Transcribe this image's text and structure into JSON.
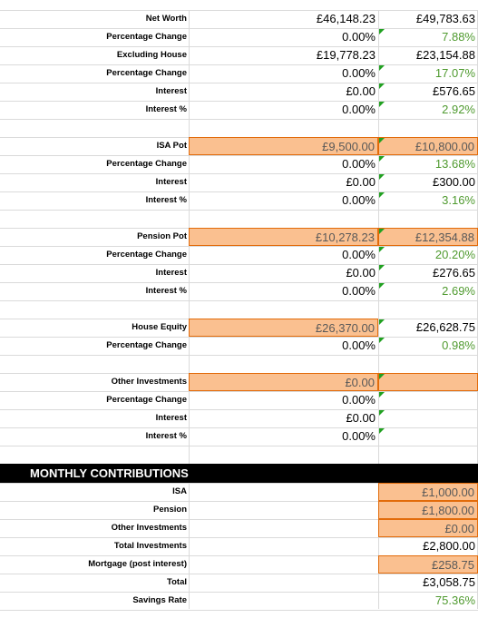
{
  "groups": [
    [
      [
        "Net Worth",
        "£46,148.23",
        "£49,783.63"
      ],
      [
        "Percentage Change",
        "0.00%",
        "7.88%"
      ],
      [
        "Excluding House",
        "£19,778.23",
        "£23,154.88"
      ],
      [
        "Percentage Change",
        "0.00%",
        "17.07%"
      ],
      [
        "Interest",
        "£0.00",
        "£576.65"
      ],
      [
        "Interest %",
        "0.00%",
        "2.92%"
      ]
    ],
    [
      [
        "ISA Pot",
        "£9,500.00",
        "£10,800.00"
      ],
      [
        "Percentage Change",
        "0.00%",
        "13.68%"
      ],
      [
        "Interest",
        "£0.00",
        "£300.00"
      ],
      [
        "Interest %",
        "0.00%",
        "3.16%"
      ]
    ],
    [
      [
        "Pension Pot",
        "£10,278.23",
        "£12,354.88"
      ],
      [
        "Percentage Change",
        "0.00%",
        "20.20%"
      ],
      [
        "Interest",
        "£0.00",
        "£276.65"
      ],
      [
        "Interest %",
        "0.00%",
        "2.69%"
      ]
    ],
    [
      [
        "House Equity",
        "£26,370.00",
        "£26,628.75"
      ],
      [
        "Percentage Change",
        "0.00%",
        "0.98%"
      ]
    ],
    [
      [
        "Other Investments",
        "£0.00",
        null
      ],
      [
        "Percentage Change",
        "0.00%",
        null
      ],
      [
        "Interest",
        "£0.00",
        null
      ],
      [
        "Interest %",
        "0.00%",
        null
      ]
    ]
  ],
  "contributions": {
    "title": "MONTHLY CONTRIBUTIONS",
    "rows": [
      [
        "ISA",
        "£1,000.00"
      ],
      [
        "Pension",
        "£1,800.00"
      ],
      [
        "Other Investments",
        "£0.00"
      ],
      [
        "Total Investments",
        "£2,800.00"
      ],
      [
        "Mortgage (post interest)",
        "£258.75"
      ],
      [
        "Total",
        "£3,058.75"
      ],
      [
        "Savings Rate",
        "75.36%"
      ]
    ]
  }
}
